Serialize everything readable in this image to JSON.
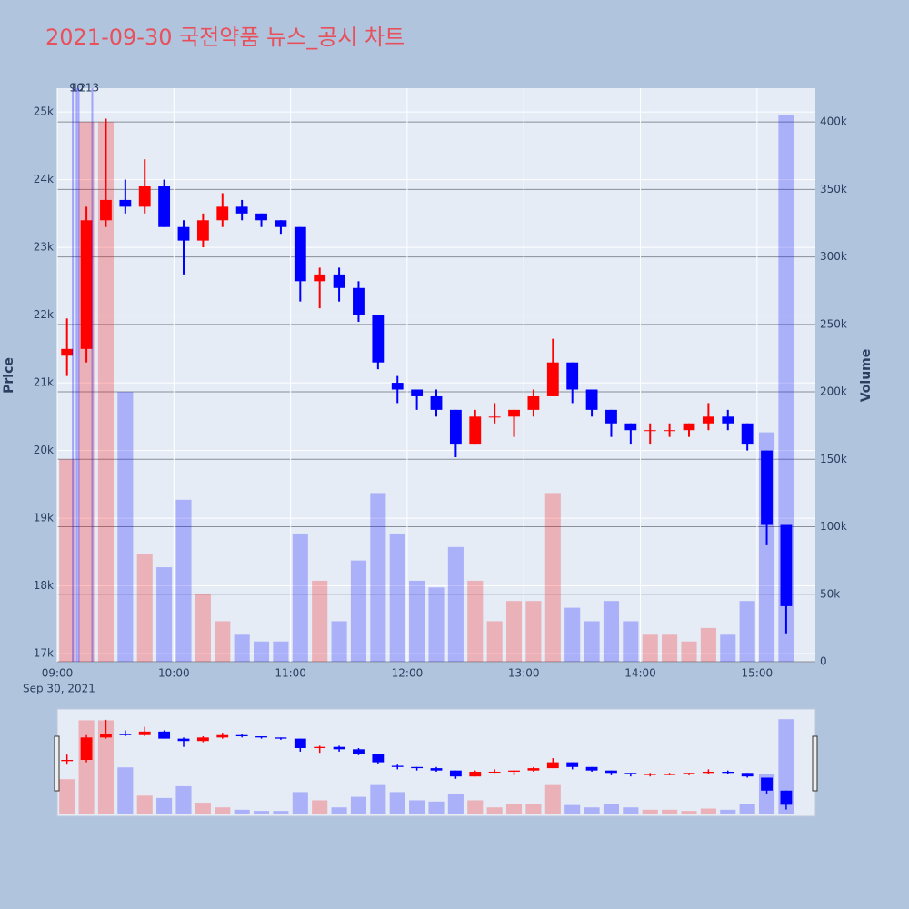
{
  "chart_data": {
    "type": "candlestick",
    "title": "2021-09-30 국전약품 뉴스_공시 차트",
    "y_title": "Price",
    "y2_title": "Volume",
    "x_date_label": "Sep 30, 2021",
    "x": [
      "09:00",
      "09:10",
      "09:20",
      "09:30",
      "09:40",
      "09:50",
      "10:00",
      "10:10",
      "10:20",
      "10:30",
      "10:40",
      "10:50",
      "11:00",
      "11:10",
      "11:20",
      "11:30",
      "11:40",
      "11:50",
      "12:00",
      "12:10",
      "12:20",
      "12:30",
      "12:40",
      "12:50",
      "13:00",
      "13:10",
      "13:20",
      "13:30",
      "13:40",
      "13:50",
      "14:00",
      "14:10",
      "14:20",
      "14:30",
      "14:40",
      "14:50",
      "15:00",
      "15:10"
    ],
    "open": [
      21400,
      21500,
      23400,
      23700,
      23600,
      23900,
      23300,
      23100,
      23400,
      23600,
      23500,
      23400,
      23300,
      22500,
      22600,
      22400,
      22000,
      21000,
      20900,
      20800,
      20600,
      20100,
      20500,
      20500,
      20600,
      20800,
      21300,
      20900,
      20600,
      20400,
      20300,
      20300,
      20300,
      20400,
      20500,
      20400,
      20000,
      18900
    ],
    "high": [
      21950,
      23600,
      24900,
      24000,
      24300,
      24000,
      23400,
      23500,
      23800,
      23700,
      23500,
      23400,
      23300,
      22700,
      22700,
      22500,
      22000,
      21100,
      20900,
      20900,
      20600,
      20600,
      20700,
      20600,
      20900,
      21650,
      21300,
      20900,
      20600,
      20400,
      20400,
      20400,
      20400,
      20700,
      20600,
      20400,
      20000,
      18900
    ],
    "low": [
      21100,
      21300,
      23300,
      23500,
      23500,
      23300,
      22600,
      23000,
      23300,
      23400,
      23300,
      23200,
      22200,
      22100,
      22200,
      21900,
      21200,
      20700,
      20600,
      20500,
      19900,
      20100,
      20400,
      20200,
      20500,
      20800,
      20700,
      20500,
      20200,
      20100,
      20100,
      20200,
      20200,
      20300,
      20300,
      20000,
      18600,
      17300
    ],
    "close": [
      21500,
      23400,
      23700,
      23600,
      23900,
      23300,
      23100,
      23400,
      23600,
      23500,
      23400,
      23300,
      22500,
      22600,
      22400,
      22000,
      21300,
      20900,
      20800,
      20600,
      20100,
      20500,
      20500,
      20600,
      20800,
      21300,
      20900,
      20600,
      20400,
      20300,
      20300,
      20300,
      20400,
      20500,
      20400,
      20100,
      18900,
      17700
    ],
    "volume": [
      150000,
      400000,
      400000,
      200000,
      80000,
      70000,
      120000,
      50000,
      30000,
      20000,
      15000,
      15000,
      95000,
      60000,
      30000,
      75000,
      125000,
      95000,
      60000,
      55000,
      85000,
      60000,
      30000,
      45000,
      45000,
      125000,
      40000,
      30000,
      45000,
      30000,
      20000,
      20000,
      15000,
      25000,
      20000,
      45000,
      170000,
      405000
    ],
    "increasing_color": "#ff0000",
    "decreasing_color": "#0000ff",
    "xlim": [
      "09:00",
      "15:30"
    ],
    "xticks": [
      "09:00",
      "10:00",
      "11:00",
      "12:00",
      "13:00",
      "14:00",
      "15:00"
    ],
    "ylim": [
      16880,
      25350
    ],
    "yticks": [
      {
        "value": 17000,
        "label": "17k"
      },
      {
        "value": 18000,
        "label": "18k"
      },
      {
        "value": 19000,
        "label": "19k"
      },
      {
        "value": 20000,
        "label": "20k"
      },
      {
        "value": 21000,
        "label": "21k"
      },
      {
        "value": 22000,
        "label": "22k"
      },
      {
        "value": 23000,
        "label": "23k"
      },
      {
        "value": 24000,
        "label": "24k"
      },
      {
        "value": 25000,
        "label": "25k"
      }
    ],
    "y2lim": [
      0,
      425000
    ],
    "y2ticks": [
      0,
      {
        "value": 50000,
        "label": "50k"
      },
      {
        "value": 100000,
        "label": "100k"
      },
      {
        "value": 150000,
        "label": "150k"
      },
      {
        "value": 200000,
        "label": "200k"
      },
      {
        "value": 250000,
        "label": "250k"
      },
      {
        "value": 300000,
        "label": "300k"
      },
      {
        "value": 350000,
        "label": "350k"
      },
      {
        "value": 400000,
        "label": "400k"
      }
    ],
    "annotations": [
      {
        "x": "09:08",
        "label": "9"
      },
      {
        "x": "09:10",
        "label": "10"
      },
      {
        "x": "09:11",
        "label": "12"
      },
      {
        "x": "09:18",
        "label": "13"
      }
    ]
  }
}
